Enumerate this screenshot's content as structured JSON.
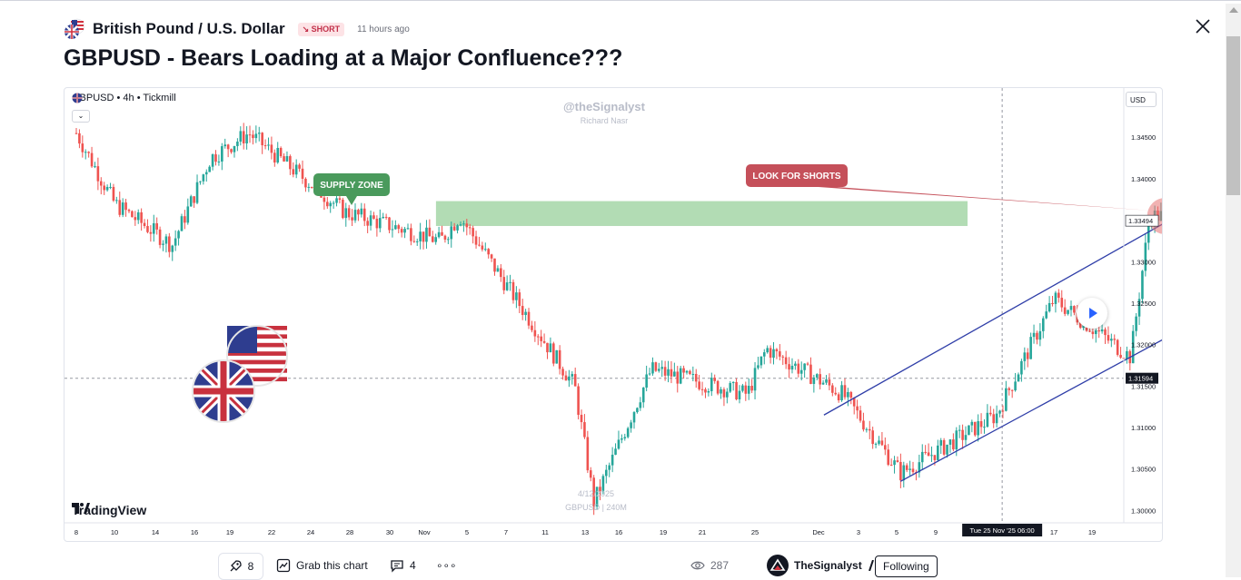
{
  "header": {
    "symbol_name": "British Pound / U.S. Dollar",
    "direction_badge": "↘ SHORT",
    "time_ago": "11 hours ago",
    "close_icon": "close-icon"
  },
  "idea": {
    "title": "GBPUSD - Bears Loading at a Major Confluence???"
  },
  "chart": {
    "legend": "GBPUSD • 4h • Tickmill",
    "watermark_handle": "@theSignalyst",
    "watermark_author": "Richard Nasr",
    "snapshot_date": "4/12/2025",
    "snapshot_symbol": "GBPUSD | 240M",
    "brand": "TradingView",
    "currency": "USD",
    "annotations": {
      "supply_zone": "SUPPLY ZONE",
      "look_for_shorts": "LOOK FOR SHORTS"
    },
    "price_labels": {
      "current": "1.33494",
      "crosshair": "1.31594"
    },
    "crosshair_time": "Tue 25 Nov '25   06:00",
    "colors": {
      "up": "#26a69a",
      "down": "#ef5350",
      "channel": "#2f3ea8",
      "supply_zone": "#a5d6a7",
      "label_green": "#4a9a5c",
      "label_red": "#c5505a",
      "arrow": "#e8323c"
    }
  },
  "chart_data": {
    "type": "candlestick",
    "symbol": "GBPUSD",
    "timeframe": "4h",
    "ylim": [
      1.2985,
      1.3505
    ],
    "y_ticks": [
      "1.34500",
      "1.34000",
      "1.33500",
      "1.33000",
      "1.32500",
      "1.32000",
      "1.31500",
      "1.31000",
      "1.30500",
      "1.30000"
    ],
    "x_ticks": [
      "8",
      "10",
      "14",
      "16",
      "19",
      "22",
      "24",
      "28",
      "30",
      "Nov",
      "5",
      "7",
      "11",
      "13",
      "16",
      "19",
      "21",
      "25",
      "Dec",
      "3",
      "5",
      "9",
      "11",
      "14",
      "17",
      "19"
    ],
    "supply_zone": [
      1.3343,
      1.3373
    ],
    "current_price": 1.33494,
    "crosshair_price": 1.31594,
    "path_keypoints": [
      {
        "x": "Oct 8",
        "price": 1.3455
      },
      {
        "x": "Oct 10",
        "price": 1.337
      },
      {
        "x": "Oct 13",
        "price": 1.332
      },
      {
        "x": "Oct 15",
        "price": 1.3425
      },
      {
        "x": "Oct 17",
        "price": 1.3455
      },
      {
        "x": "Oct 22",
        "price": 1.336
      },
      {
        "x": "Oct 27",
        "price": 1.3325
      },
      {
        "x": "Oct 28",
        "price": 1.3355
      },
      {
        "x": "Nov 3",
        "price": 1.315
      },
      {
        "x": "Nov 4",
        "price": 1.301
      },
      {
        "x": "Nov 7",
        "price": 1.317
      },
      {
        "x": "Nov 12",
        "price": 1.314
      },
      {
        "x": "Nov 13",
        "price": 1.3195
      },
      {
        "x": "Nov 17",
        "price": 1.314
      },
      {
        "x": "Nov 20",
        "price": 1.3045
      },
      {
        "x": "Nov 25",
        "price": 1.3115
      },
      {
        "x": "Nov 28",
        "price": 1.3255
      },
      {
        "x": "Dec 2",
        "price": 1.3185
      },
      {
        "x": "Dec 3",
        "price": 1.3355
      }
    ],
    "channel_upper": [
      {
        "x": "Nov 16",
        "price": 1.3115
      },
      {
        "x": "Dec 13",
        "price": 1.3467
      }
    ],
    "channel_lower": [
      {
        "x": "Nov 20",
        "price": 1.3035
      },
      {
        "x": "Dec 18",
        "price": 1.3385
      }
    ]
  },
  "footer": {
    "boosts": "8",
    "grab_label": "Grab this chart",
    "comments": "4",
    "more": "∘∘∘",
    "views": "287",
    "author": "TheSignalyst",
    "follow_label": "Following"
  }
}
